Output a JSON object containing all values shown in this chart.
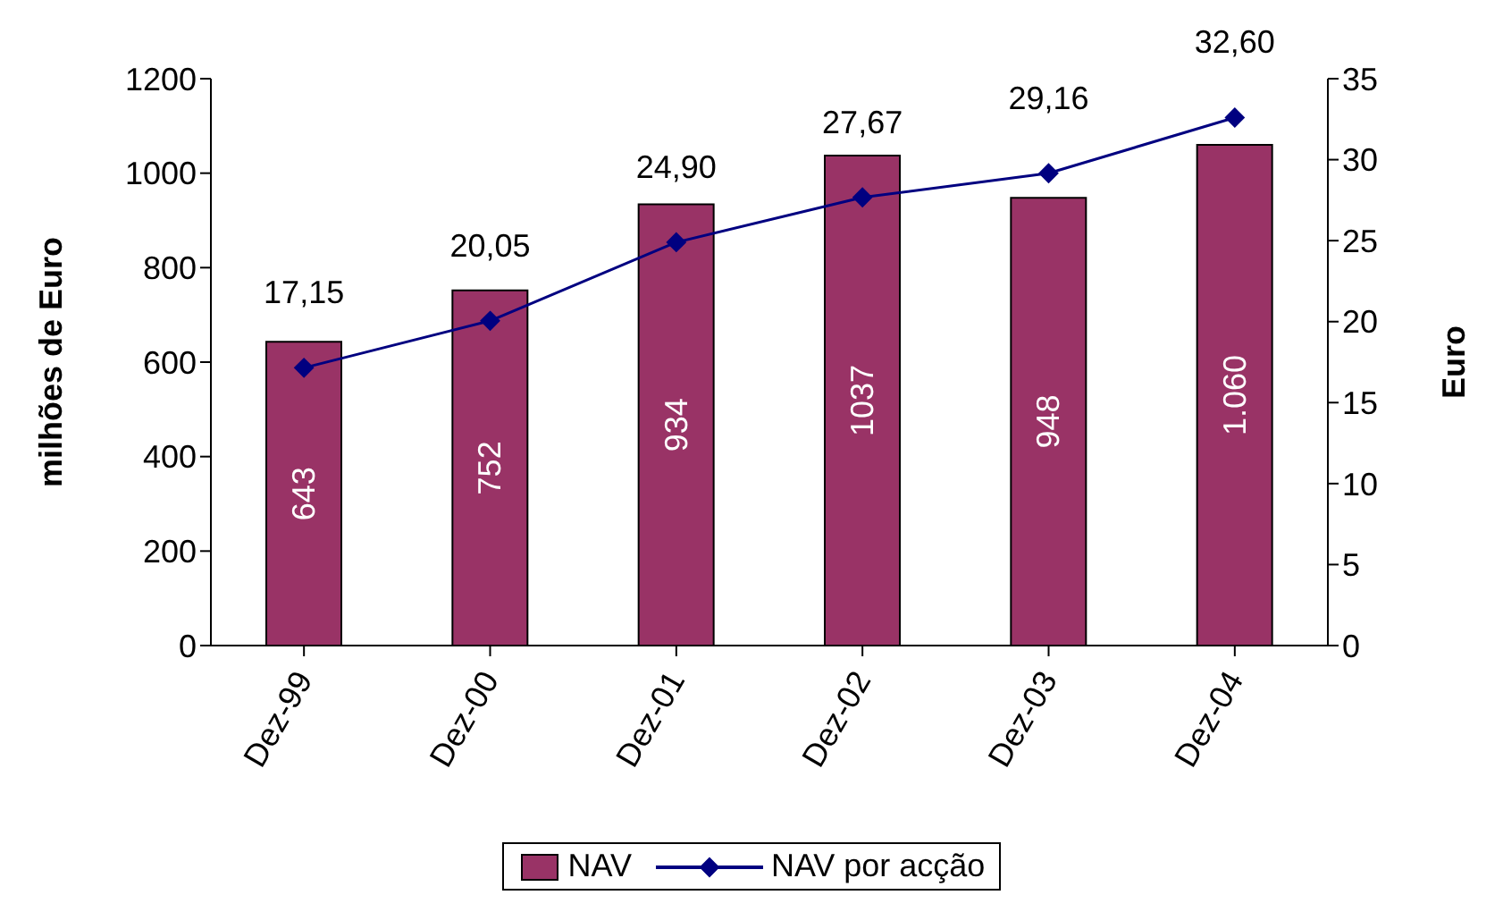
{
  "chart_data": {
    "type": "bar",
    "categories": [
      "Dez-99",
      "Dez-00",
      "Dez-01",
      "Dez-02",
      "Dez-03",
      "Dez-04"
    ],
    "ylabel": "milhões de Euro",
    "y2label": "Euro",
    "ylim": [
      0,
      1200
    ],
    "yticks": [
      0,
      200,
      400,
      600,
      800,
      1000,
      1200
    ],
    "y2lim": [
      0,
      35
    ],
    "y2ticks": [
      0,
      5,
      10,
      15,
      20,
      25,
      30,
      35
    ],
    "series": [
      {
        "name": "NAV",
        "color": "#993366",
        "values": [
          643,
          752,
          934,
          1037,
          948,
          1060
        ],
        "value_labels": [
          "643",
          "752",
          "934",
          "1037",
          "948",
          "1.060"
        ]
      },
      {
        "name": "NAV por acção",
        "type": "line",
        "axis": "y2",
        "color": "#000080",
        "marker": "diamond",
        "values": [
          17.15,
          20.05,
          24.9,
          27.67,
          29.16,
          32.6
        ],
        "value_labels": [
          "17,15",
          "20,05",
          "24,90",
          "27,67",
          "29,16",
          "32,60"
        ]
      }
    ],
    "legend": "bottom"
  }
}
